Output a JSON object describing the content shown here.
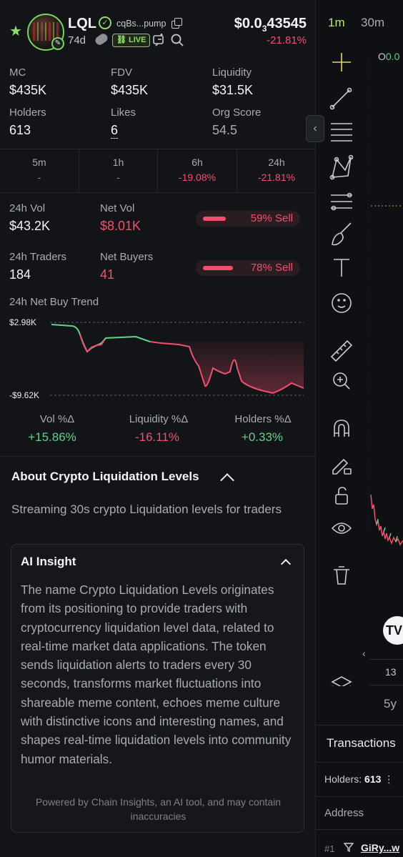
{
  "token": {
    "symbol": "LQL",
    "address_short": "cqBs...pump",
    "age": "74d",
    "live_label": "LIVE",
    "price_prefix": "$0.0",
    "price_sub": "3",
    "price_rest": "43545",
    "price_change": "-21.81%"
  },
  "metrics": [
    {
      "label": "MC",
      "value": "$435K"
    },
    {
      "label": "FDV",
      "value": "$435K"
    },
    {
      "label": "Liquidity",
      "value": "$31.5K"
    },
    {
      "label": "Holders",
      "value": "613"
    },
    {
      "label": "Likes",
      "value": "6"
    },
    {
      "label": "Org Score",
      "value": "54.5"
    }
  ],
  "timeframes": [
    {
      "label": "5m",
      "value": "-"
    },
    {
      "label": "1h",
      "value": "-"
    },
    {
      "label": "6h",
      "value": "-19.08%"
    },
    {
      "label": "24h",
      "value": "-21.81%"
    }
  ],
  "volume": {
    "vol_label": "24h Vol",
    "vol_value": "$43.2K",
    "netvol_label": "Net Vol",
    "netvol_value": "$8.01K",
    "vol_sell_pct": 0.59,
    "vol_sell_text": "59% Sell",
    "traders_label": "24h Traders",
    "traders_value": "184",
    "netbuyers_label": "Net Buyers",
    "netbuyers_value": "41",
    "traders_sell_pct": 0.78,
    "traders_sell_text": "78% Sell"
  },
  "trend": {
    "title": "24h Net Buy Trend",
    "ymax_label": "$2.98K",
    "ymin_label": "-$9.62K"
  },
  "changes": [
    {
      "label": "Vol %Δ",
      "value": "+15.86%",
      "color": "#5fd38a"
    },
    {
      "label": "Liquidity %Δ",
      "value": "-16.11%",
      "color": "#f0506e"
    },
    {
      "label": "Holders %Δ",
      "value": "+0.33%",
      "color": "#5fd38a"
    }
  ],
  "about": {
    "title": "About Crypto Liquidation Levels",
    "description": "Streaming 30s crypto Liquidation levels for traders"
  },
  "ai": {
    "title": "AI Insight",
    "text": "The name Crypto Liquidation Levels originates from its positioning to provide traders with cryptocurrency liquidation level data, related to real-time market data applications. The token sends liquidation alerts to traders every 30 seconds, transforms market fluctuations into shareable meme content, echoes meme culture with distinctive icons and interesting names, and shapes real-time liquidation levels into community humor materials.",
    "footer": "Powered by Chain Insights, an AI tool, and may contain inaccuracies"
  },
  "chart_panel": {
    "interval_1": "1m",
    "interval_2": "30m",
    "ohlc_prefix": "O",
    "ohlc_value": "0.0",
    "x_tick": "13",
    "range_btn": "5y",
    "tv_logo": "TV"
  },
  "transactions": {
    "tab_label": "Transactions",
    "holders_label": "Holders:",
    "holders_value": "613",
    "address_label": "Address",
    "row_num": "#1",
    "row_addr": "GiRy...w"
  },
  "colors": {
    "green": "#8fdc6a",
    "red": "#f0506e",
    "bg": "#121418"
  }
}
